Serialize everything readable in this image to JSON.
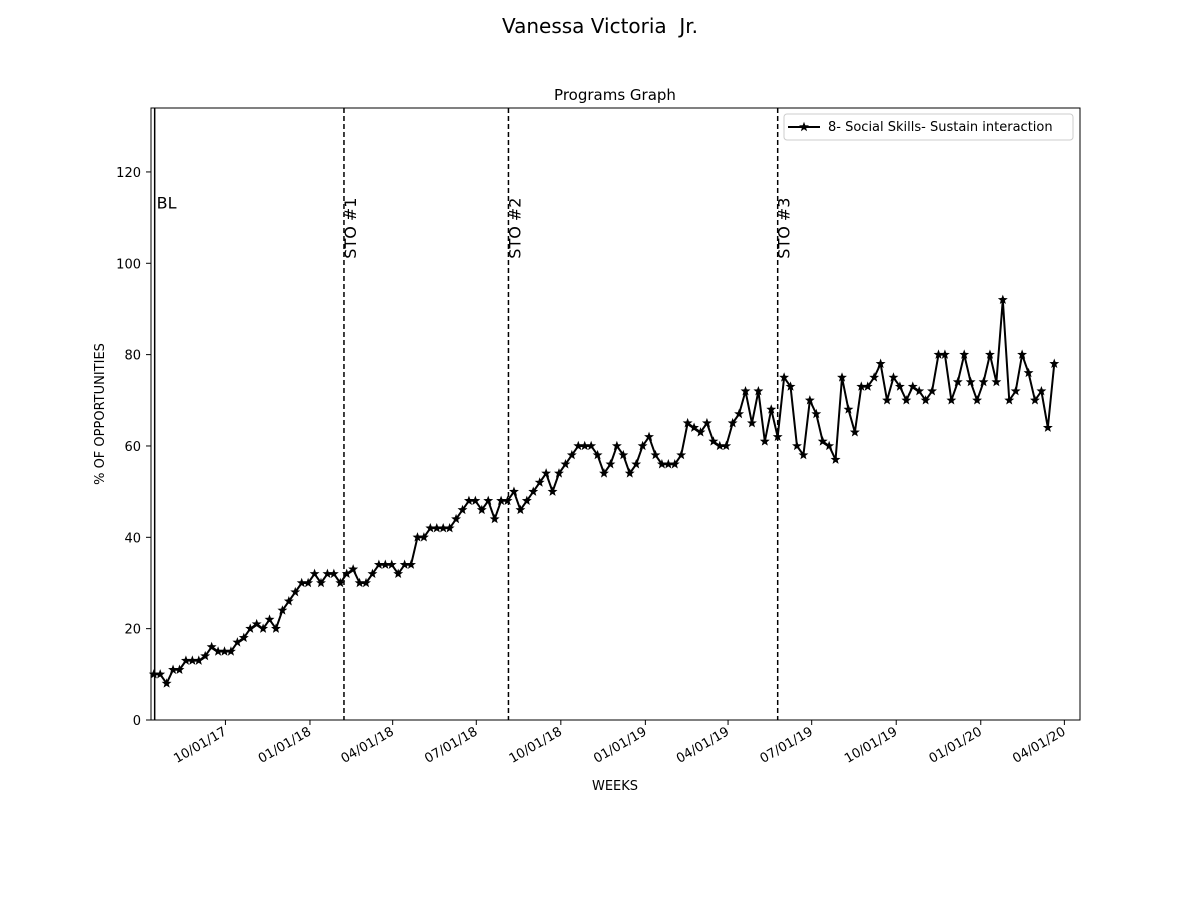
{
  "figure": {
    "suptitle": "Vanessa Victoria  Jr."
  },
  "chart_data": {
    "type": "line",
    "title": "Programs Graph",
    "xlabel": "WEEKS",
    "ylabel": "% OF OPPORTUNITIES",
    "x_type": "date",
    "xlim": [
      "2017-07-12",
      "2020-04-18"
    ],
    "ylim": [
      0,
      134
    ],
    "x_ticks": [
      "2017-10-01",
      "2018-01-01",
      "2018-04-01",
      "2018-07-01",
      "2018-10-01",
      "2019-01-01",
      "2019-04-01",
      "2019-07-01",
      "2019-10-01",
      "2020-01-01",
      "2020-04-01"
    ],
    "x_tick_labels": [
      "10/01/17",
      "01/01/18",
      "04/01/18",
      "07/01/18",
      "10/01/18",
      "01/01/19",
      "04/01/19",
      "07/01/19",
      "10/01/19",
      "01/01/20",
      "04/01/20"
    ],
    "y_ticks": [
      0,
      20,
      40,
      60,
      80,
      100,
      120
    ],
    "y_tick_labels": [
      "0",
      "20",
      "40",
      "60",
      "80",
      "100",
      "120"
    ],
    "grid": false,
    "legend": {
      "placement": "top-right"
    },
    "phase_lines": [
      {
        "label": "BL",
        "date": "2017-07-16",
        "style": "solid"
      },
      {
        "label": "STO #1",
        "date": "2018-02-07",
        "style": "dashed"
      },
      {
        "label": "STO #2",
        "date": "2018-08-05",
        "style": "dashed"
      },
      {
        "label": "STO #3",
        "date": "2019-05-25",
        "style": "dashed"
      }
    ],
    "series": [
      {
        "name": "8- Social Skills- Sustain interaction",
        "color": "#000000",
        "marker": "star",
        "points": [
          [
            "2017-07-15",
            10
          ],
          [
            "2017-07-22",
            10
          ],
          [
            "2017-07-29",
            8
          ],
          [
            "2017-08-05",
            11
          ],
          [
            "2017-08-12",
            11
          ],
          [
            "2017-08-19",
            13
          ],
          [
            "2017-08-26",
            13
          ],
          [
            "2017-09-02",
            13
          ],
          [
            "2017-09-09",
            14
          ],
          [
            "2017-09-16",
            16
          ],
          [
            "2017-09-23",
            15
          ],
          [
            "2017-09-30",
            15
          ],
          [
            "2017-10-07",
            15
          ],
          [
            "2017-10-14",
            17
          ],
          [
            "2017-10-21",
            18
          ],
          [
            "2017-10-28",
            20
          ],
          [
            "2017-11-04",
            21
          ],
          [
            "2017-11-11",
            20
          ],
          [
            "2017-11-18",
            22
          ],
          [
            "2017-11-25",
            20
          ],
          [
            "2017-12-02",
            24
          ],
          [
            "2017-12-09",
            26
          ],
          [
            "2017-12-16",
            28
          ],
          [
            "2017-12-23",
            30
          ],
          [
            "2017-12-30",
            30
          ],
          [
            "2018-01-06",
            32
          ],
          [
            "2018-01-13",
            30
          ],
          [
            "2018-01-20",
            32
          ],
          [
            "2018-01-27",
            32
          ],
          [
            "2018-02-03",
            30
          ],
          [
            "2018-02-10",
            32
          ],
          [
            "2018-02-17",
            33
          ],
          [
            "2018-02-24",
            30
          ],
          [
            "2018-03-03",
            30
          ],
          [
            "2018-03-10",
            32
          ],
          [
            "2018-03-17",
            34
          ],
          [
            "2018-03-24",
            34
          ],
          [
            "2018-03-31",
            34
          ],
          [
            "2018-04-07",
            32
          ],
          [
            "2018-04-14",
            34
          ],
          [
            "2018-04-21",
            34
          ],
          [
            "2018-04-28",
            40
          ],
          [
            "2018-05-05",
            40
          ],
          [
            "2018-05-12",
            42
          ],
          [
            "2018-05-19",
            42
          ],
          [
            "2018-05-26",
            42
          ],
          [
            "2018-06-02",
            42
          ],
          [
            "2018-06-09",
            44
          ],
          [
            "2018-06-16",
            46
          ],
          [
            "2018-06-23",
            48
          ],
          [
            "2018-06-30",
            48
          ],
          [
            "2018-07-07",
            46
          ],
          [
            "2018-07-14",
            48
          ],
          [
            "2018-07-21",
            44
          ],
          [
            "2018-07-28",
            48
          ],
          [
            "2018-08-04",
            48
          ],
          [
            "2018-08-11",
            50
          ],
          [
            "2018-08-18",
            46
          ],
          [
            "2018-08-25",
            48
          ],
          [
            "2018-09-01",
            50
          ],
          [
            "2018-09-08",
            52
          ],
          [
            "2018-09-15",
            54
          ],
          [
            "2018-09-22",
            50
          ],
          [
            "2018-09-29",
            54
          ],
          [
            "2018-10-06",
            56
          ],
          [
            "2018-10-13",
            58
          ],
          [
            "2018-10-20",
            60
          ],
          [
            "2018-10-27",
            60
          ],
          [
            "2018-11-03",
            60
          ],
          [
            "2018-11-10",
            58
          ],
          [
            "2018-11-17",
            54
          ],
          [
            "2018-11-24",
            56
          ],
          [
            "2018-12-01",
            60
          ],
          [
            "2018-12-08",
            58
          ],
          [
            "2018-12-15",
            54
          ],
          [
            "2018-12-22",
            56
          ],
          [
            "2018-12-29",
            60
          ],
          [
            "2019-01-05",
            62
          ],
          [
            "2019-01-12",
            58
          ],
          [
            "2019-01-19",
            56
          ],
          [
            "2019-01-26",
            56
          ],
          [
            "2019-02-02",
            56
          ],
          [
            "2019-02-09",
            58
          ],
          [
            "2019-02-16",
            65
          ],
          [
            "2019-02-23",
            64
          ],
          [
            "2019-03-02",
            63
          ],
          [
            "2019-03-09",
            65
          ],
          [
            "2019-03-16",
            61
          ],
          [
            "2019-03-23",
            60
          ],
          [
            "2019-03-30",
            60
          ],
          [
            "2019-04-06",
            65
          ],
          [
            "2019-04-13",
            67
          ],
          [
            "2019-04-20",
            72
          ],
          [
            "2019-04-27",
            65
          ],
          [
            "2019-05-04",
            72
          ],
          [
            "2019-05-11",
            61
          ],
          [
            "2019-05-18",
            68
          ],
          [
            "2019-05-25",
            62
          ],
          [
            "2019-06-01",
            75
          ],
          [
            "2019-06-08",
            73
          ],
          [
            "2019-06-15",
            60
          ],
          [
            "2019-06-22",
            58
          ],
          [
            "2019-06-29",
            70
          ],
          [
            "2019-07-06",
            67
          ],
          [
            "2019-07-13",
            61
          ],
          [
            "2019-07-20",
            60
          ],
          [
            "2019-07-27",
            57
          ],
          [
            "2019-08-03",
            75
          ],
          [
            "2019-08-10",
            68
          ],
          [
            "2019-08-17",
            63
          ],
          [
            "2019-08-24",
            73
          ],
          [
            "2019-08-31",
            73
          ],
          [
            "2019-09-07",
            75
          ],
          [
            "2019-09-14",
            78
          ],
          [
            "2019-09-21",
            70
          ],
          [
            "2019-09-28",
            75
          ],
          [
            "2019-10-05",
            73
          ],
          [
            "2019-10-12",
            70
          ],
          [
            "2019-10-19",
            73
          ],
          [
            "2019-10-26",
            72
          ],
          [
            "2019-11-02",
            70
          ],
          [
            "2019-11-09",
            72
          ],
          [
            "2019-11-16",
            80
          ],
          [
            "2019-11-23",
            80
          ],
          [
            "2019-11-30",
            70
          ],
          [
            "2019-12-07",
            74
          ],
          [
            "2019-12-14",
            80
          ],
          [
            "2019-12-21",
            74
          ],
          [
            "2019-12-28",
            70
          ],
          [
            "2020-01-04",
            74
          ],
          [
            "2020-01-11",
            80
          ],
          [
            "2020-01-18",
            74
          ],
          [
            "2020-01-25",
            92
          ],
          [
            "2020-02-01",
            70
          ],
          [
            "2020-02-08",
            72
          ],
          [
            "2020-02-15",
            80
          ],
          [
            "2020-02-22",
            76
          ],
          [
            "2020-02-29",
            70
          ],
          [
            "2020-03-07",
            72
          ],
          [
            "2020-03-14",
            64
          ],
          [
            "2020-03-21",
            78
          ]
        ]
      }
    ]
  }
}
